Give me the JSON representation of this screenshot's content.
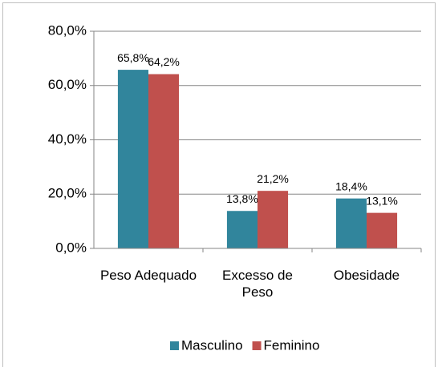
{
  "chart_data": {
    "type": "bar",
    "categories": [
      "Peso Adequado",
      "Excesso de Peso",
      "Obesidade"
    ],
    "series": [
      {
        "name": "Masculino",
        "color": "#31859c",
        "values": [
          65.8,
          13.8,
          18.4
        ],
        "value_labels": [
          "65,8%",
          "13,8%",
          "18,4%"
        ]
      },
      {
        "name": "Feminino",
        "color": "#c0504d",
        "values": [
          64.2,
          21.2,
          13.1
        ],
        "value_labels": [
          "64,2%",
          "21,2%",
          "13,1%"
        ]
      }
    ],
    "ylim": [
      0,
      80
    ],
    "yticks": [
      {
        "value": 0,
        "label": "0,0%"
      },
      {
        "value": 20,
        "label": "20,0%"
      },
      {
        "value": 40,
        "label": "40,0%"
      },
      {
        "value": 60,
        "label": "60,0%"
      },
      {
        "value": 80,
        "label": "80,0%"
      }
    ],
    "grid": true,
    "legend": "bottom"
  }
}
